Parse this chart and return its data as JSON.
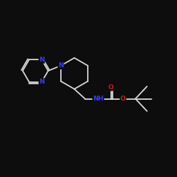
{
  "background_color": "#0d0d0d",
  "bond_color": "#d8d8d8",
  "nitrogen_color": "#3a3aff",
  "oxygen_color": "#cc1a1a",
  "line_width": 1.3,
  "font_size_atom": 6.5,
  "xlim": [
    0,
    10
  ],
  "ylim": [
    0,
    10
  ],
  "figsize": [
    2.5,
    2.5
  ],
  "dpi": 100
}
